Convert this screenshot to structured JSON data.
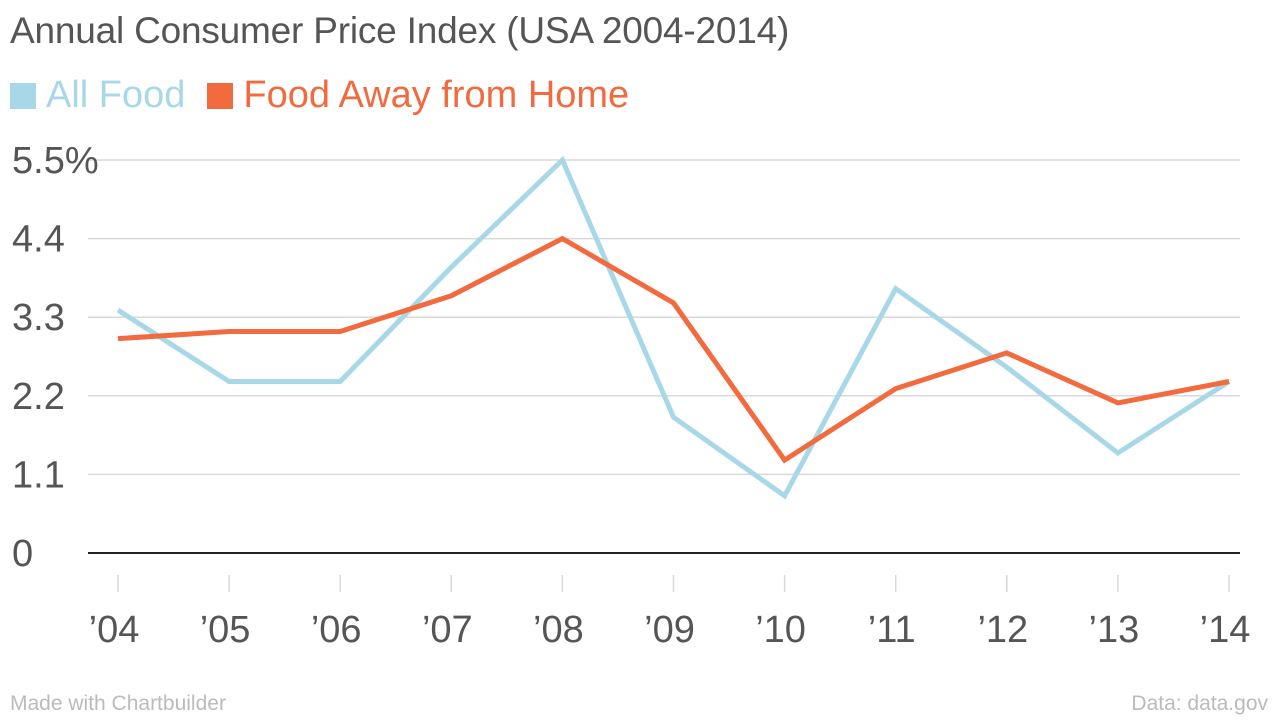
{
  "title": "Annual Consumer Price Index (USA 2004-2014)",
  "footer": {
    "credit": "Made with Chartbuilder",
    "source": "Data: data.gov"
  },
  "colors": {
    "all_food": "#a8d8e8",
    "food_away": "#f26b3f",
    "grid": "#d9d9d9",
    "baseline": "#222222",
    "text": "#555555",
    "footer": "#bbbbbb"
  },
  "chart_data": {
    "type": "line",
    "title": "Annual Consumer Price Index (USA 2004-2014)",
    "xlabel": "",
    "ylabel": "",
    "categories": [
      "’04",
      "’05",
      "’06",
      "’07",
      "’08",
      "’09",
      "’10",
      "’11",
      "’12",
      "’13",
      "’14"
    ],
    "series": [
      {
        "name": "All Food",
        "color": "#a8d8e8",
        "values": [
          3.4,
          2.4,
          2.4,
          4.0,
          5.5,
          1.9,
          0.8,
          3.7,
          2.6,
          1.4,
          2.4
        ]
      },
      {
        "name": "Food Away from Home",
        "color": "#f26b3f",
        "values": [
          3.0,
          3.1,
          3.1,
          3.6,
          4.4,
          3.5,
          1.3,
          2.3,
          2.8,
          2.1,
          2.4
        ]
      }
    ],
    "yticks": [
      {
        "value": 0,
        "label": "0"
      },
      {
        "value": 1.1,
        "label": "1.1"
      },
      {
        "value": 2.2,
        "label": "2.2"
      },
      {
        "value": 3.3,
        "label": "3.3"
      },
      {
        "value": 4.4,
        "label": "4.4"
      },
      {
        "value": 5.5,
        "label": "5.5%"
      }
    ],
    "ylim": [
      0,
      5.5
    ],
    "grid": true,
    "legend": "top-left"
  }
}
